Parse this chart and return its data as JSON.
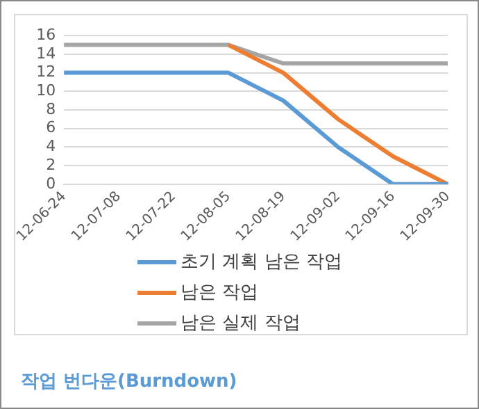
{
  "chart_data": {
    "type": "line",
    "title": "작업 번다운(Burndown)",
    "categories": [
      "12-06-24",
      "12-07-08",
      "12-07-22",
      "12-08-05",
      "12-08-19",
      "12-09-02",
      "12-09-16",
      "12-09-30"
    ],
    "series": [
      {
        "name": "초기 계획 남은 작업",
        "color": "#5b9bd5",
        "values": [
          12,
          12,
          12,
          12,
          9,
          4,
          0,
          0
        ]
      },
      {
        "name": "남은 작업",
        "color": "#ed7d31",
        "values": [
          null,
          null,
          null,
          15,
          12,
          7,
          3,
          0
        ]
      },
      {
        "name": "남은 실제 작업",
        "color": "#a5a5a5",
        "values": [
          15,
          15,
          15,
          15,
          13,
          13,
          13,
          13
        ]
      }
    ],
    "ylim": [
      0,
      16
    ],
    "yticks": [
      0,
      2,
      4,
      6,
      8,
      10,
      12,
      14,
      16
    ],
    "grid": "y",
    "legend": "bottom",
    "marker": "none",
    "line_style": "solid"
  }
}
